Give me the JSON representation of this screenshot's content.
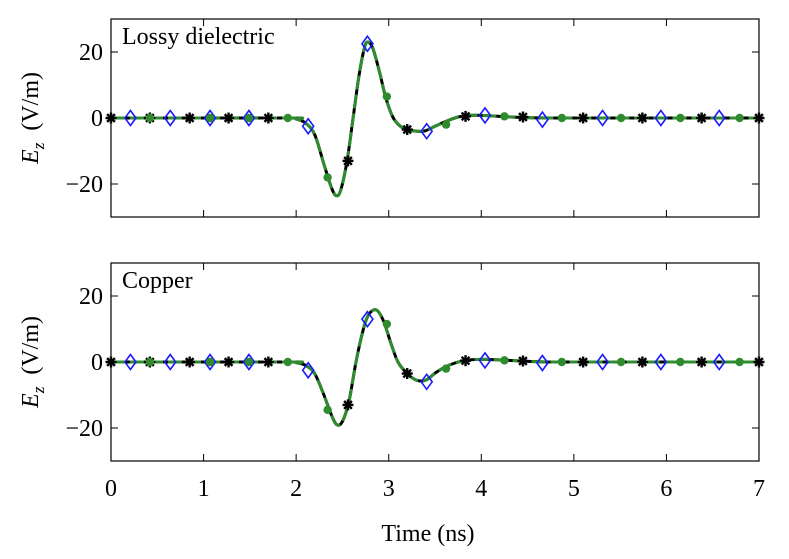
{
  "chart_data": [
    {
      "type": "line",
      "title": "Lossy dielectric",
      "xlabel": "",
      "ylabel_main": "E",
      "ylabel_sub": "z",
      "ylabel_units": "(V/m)",
      "xlim": [
        0,
        7
      ],
      "ylim": [
        -30,
        30
      ],
      "xticks": [
        0,
        1,
        2,
        3,
        4,
        5,
        6,
        7
      ],
      "yticks": [
        20,
        0,
        -20
      ],
      "ytick_labels": [
        "20",
        "0",
        "−20"
      ],
      "colors": {
        "analytic": "#000000",
        "stars": "#000000",
        "diamonds": "#1a1aff",
        "dots": "#2e8b2e"
      },
      "curve": {
        "x": [
          0,
          1.9,
          2.0,
          2.1,
          2.2,
          2.3,
          2.38,
          2.43,
          2.48,
          2.55,
          2.62,
          2.68,
          2.74,
          2.78,
          2.83,
          2.9,
          2.97,
          3.05,
          3.15,
          3.25,
          3.38,
          3.5,
          3.62,
          3.75,
          3.88,
          4.0,
          4.2,
          4.5,
          5.0,
          7.0
        ],
        "y": [
          0,
          0,
          -0.3,
          -1.5,
          -5,
          -14,
          -21,
          -23.5,
          -22,
          -13,
          1,
          13,
          21.5,
          23,
          21,
          14,
          6,
          0,
          -3,
          -3.8,
          -4,
          -2.5,
          -1,
          0.3,
          0.8,
          0.8,
          0.5,
          0.1,
          0,
          0
        ]
      },
      "markers": {
        "stars": {
          "x": [
            0,
            0.42,
            0.85,
            1.27,
            1.7,
            2.56,
            3.2,
            3.83,
            4.45,
            5.1,
            5.74,
            6.38,
            7.0
          ],
          "y": [
            0,
            0,
            0,
            0,
            0,
            -13,
            -3.5,
            0.5,
            0.3,
            0,
            0,
            0,
            0
          ]
        },
        "diamonds": {
          "x": [
            0.21,
            0.64,
            1.07,
            1.49,
            2.13,
            2.77,
            3.41,
            4.04,
            4.66,
            5.31,
            5.94,
            6.57
          ],
          "y": [
            0,
            0,
            0,
            0,
            -2.5,
            22.5,
            -4,
            0.8,
            -0.5,
            0,
            0,
            0
          ]
        },
        "dots": {
          "x": [
            0.42,
            1.07,
            1.49,
            1.91,
            2.34,
            2.98,
            3.62,
            4.25,
            4.87,
            5.51,
            6.15,
            6.79
          ],
          "y": [
            0,
            0,
            0,
            0,
            -18,
            6.5,
            -2,
            0.5,
            0,
            0,
            0,
            0
          ]
        }
      }
    },
    {
      "type": "line",
      "title": "Copper",
      "xlabel": "Time (ns)",
      "ylabel_main": "E",
      "ylabel_sub": "z",
      "ylabel_units": "(V/m)",
      "xlim": [
        0,
        7
      ],
      "ylim": [
        -30,
        30
      ],
      "xticks": [
        0,
        1,
        2,
        3,
        4,
        5,
        6,
        7
      ],
      "xtick_labels": [
        "0",
        "1",
        "2",
        "3",
        "4",
        "5",
        "6",
        "7"
      ],
      "yticks": [
        20,
        0,
        -20
      ],
      "ytick_labels": [
        "20",
        "0",
        "−20"
      ],
      "colors": {
        "analytic": "#000000",
        "stars": "#000000",
        "diamonds": "#1a1aff",
        "dots": "#2e8b2e"
      },
      "curve": {
        "x": [
          0,
          1.9,
          2.0,
          2.1,
          2.2,
          2.3,
          2.38,
          2.44,
          2.5,
          2.57,
          2.64,
          2.7,
          2.76,
          2.82,
          2.88,
          2.95,
          3.02,
          3.1,
          3.2,
          3.3,
          3.4,
          3.52,
          3.65,
          3.78,
          3.9,
          4.05,
          4.3,
          4.6,
          5.0,
          7.0
        ],
        "y": [
          0,
          0,
          -0.2,
          -1,
          -3.5,
          -10,
          -16,
          -19,
          -18,
          -12,
          -1,
          7,
          13,
          15.5,
          15.5,
          12,
          6,
          0,
          -3.5,
          -5.5,
          -5.5,
          -3,
          -1,
          0.2,
          0.7,
          0.8,
          0.5,
          0.1,
          0,
          0
        ]
      },
      "markers": {
        "stars": {
          "x": [
            0,
            0.42,
            0.85,
            1.27,
            1.7,
            2.56,
            3.2,
            3.83,
            4.45,
            5.1,
            5.74,
            6.38,
            7.0
          ],
          "y": [
            0,
            0,
            0,
            0,
            0,
            -13,
            -3.5,
            0.4,
            0.3,
            0,
            0,
            0,
            0
          ]
        },
        "diamonds": {
          "x": [
            0.21,
            0.64,
            1.07,
            1.49,
            2.13,
            2.77,
            3.41,
            4.04,
            4.66,
            5.31,
            5.94,
            6.57
          ],
          "y": [
            0,
            0,
            0,
            0,
            -2.5,
            13,
            -6,
            0.5,
            -0.3,
            0,
            0,
            0
          ]
        },
        "dots": {
          "x": [
            0.42,
            1.07,
            1.49,
            1.91,
            2.34,
            2.98,
            3.62,
            4.25,
            4.87,
            5.51,
            6.15,
            6.79
          ],
          "y": [
            0,
            0,
            0,
            0,
            -14.5,
            11.5,
            -2,
            0.5,
            0,
            0,
            0,
            0
          ]
        }
      }
    }
  ]
}
